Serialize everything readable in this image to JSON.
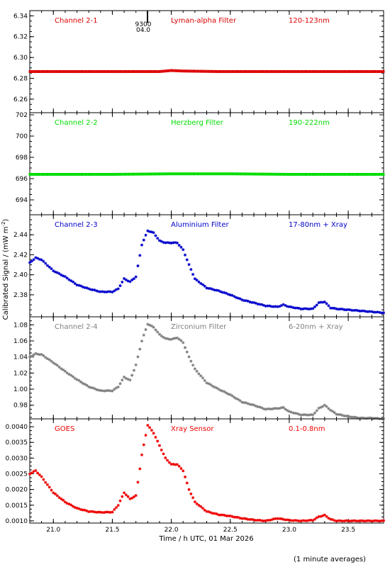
{
  "figure": {
    "ylabel": "Calibrated Signal / (mW m",
    "ylabel_sup": "-2",
    "ylabel_tail": ")",
    "xlabel": "Time / h UTC, 01 Mar 2026",
    "footnote": "(1 minute averages)",
    "marker_top": "9300",
    "marker_bottom": "04.0"
  },
  "chart_data": [
    {
      "type": "scatter",
      "channel": "Channel 2-1",
      "filter": "Lyman-alpha Filter",
      "band": "120-123nm",
      "color": "#dd0000",
      "xlim": [
        20.8,
        23.8
      ],
      "ylim": [
        6.247,
        6.345
      ],
      "yticks": [
        6.26,
        6.28,
        6.3,
        6.32,
        6.34
      ],
      "yticklabels": [
        "6.26",
        "6.28",
        "6.30",
        "6.32",
        "6.34"
      ],
      "series": [
        {
          "x": [
            20.8,
            21.5,
            21.9,
            22.0,
            22.1,
            22.4,
            23.0,
            23.8
          ],
          "y": [
            6.2865,
            6.2865,
            6.2865,
            6.2875,
            6.287,
            6.2865,
            6.2865,
            6.2865
          ]
        }
      ]
    },
    {
      "type": "scatter",
      "channel": "Channel 2-2",
      "filter": "Herzberg Filter",
      "band": "190-222nm",
      "color": "#00dd00",
      "xlim": [
        20.8,
        23.8
      ],
      "ylim": [
        692.6,
        702.2
      ],
      "yticks": [
        694,
        696,
        698,
        700,
        702
      ],
      "yticklabels": [
        "694",
        "696",
        "698",
        "700",
        "702"
      ],
      "series": [
        {
          "x": [
            20.8,
            21.5,
            22.0,
            22.5,
            23.0,
            23.8
          ],
          "y": [
            696.4,
            696.4,
            696.45,
            696.45,
            696.4,
            696.4
          ]
        }
      ]
    },
    {
      "type": "scatter",
      "channel": "Channel 2-3",
      "filter": "Aluminium Filter",
      "band": "17-80nm + Xray",
      "color": "#0000cc",
      "xlim": [
        20.8,
        23.8
      ],
      "ylim": [
        2.358,
        2.46
      ],
      "yticks": [
        2.38,
        2.4,
        2.42,
        2.44
      ],
      "yticklabels": [
        "2.38",
        "2.40",
        "2.42",
        "2.44"
      ],
      "series": [
        {
          "x": [
            20.8,
            20.85,
            20.9,
            21.0,
            21.1,
            21.2,
            21.3,
            21.4,
            21.5,
            21.55,
            21.6,
            21.65,
            21.7,
            21.75,
            21.8,
            21.85,
            21.9,
            21.95,
            22.05,
            22.1,
            22.15,
            22.2,
            22.3,
            22.4,
            22.5,
            22.6,
            22.7,
            22.8,
            22.9,
            22.95,
            23.0,
            23.1,
            23.2,
            23.25,
            23.3,
            23.35,
            23.4,
            23.5,
            23.6,
            23.7,
            23.8
          ],
          "y": [
            2.412,
            2.417,
            2.415,
            2.404,
            2.398,
            2.39,
            2.386,
            2.383,
            2.383,
            2.386,
            2.396,
            2.393,
            2.398,
            2.43,
            2.444,
            2.442,
            2.434,
            2.432,
            2.432,
            2.425,
            2.41,
            2.396,
            2.387,
            2.384,
            2.38,
            2.375,
            2.372,
            2.369,
            2.368,
            2.37,
            2.368,
            2.366,
            2.366,
            2.372,
            2.373,
            2.367,
            2.366,
            2.365,
            2.364,
            2.363,
            2.362
          ]
        }
      ]
    },
    {
      "type": "scatter",
      "channel": "Channel 2-4",
      "filter": "Zirconium Filter",
      "band": "6-20nm + Xray",
      "color": "#808080",
      "xlim": [
        20.8,
        23.8
      ],
      "ylim": [
        0.963,
        1.09
      ],
      "yticks": [
        0.98,
        1.0,
        1.02,
        1.04,
        1.06,
        1.08
      ],
      "yticklabels": [
        "0.98",
        "1.00",
        "1.02",
        "1.04",
        "1.06",
        "1.08"
      ],
      "series": [
        {
          "x": [
            20.8,
            20.85,
            20.9,
            21.0,
            21.1,
            21.2,
            21.3,
            21.4,
            21.5,
            21.55,
            21.6,
            21.65,
            21.7,
            21.75,
            21.8,
            21.85,
            21.9,
            21.95,
            22.0,
            22.05,
            22.1,
            22.15,
            22.2,
            22.3,
            22.4,
            22.5,
            22.6,
            22.7,
            22.8,
            22.9,
            22.95,
            23.0,
            23.1,
            23.2,
            23.25,
            23.3,
            23.35,
            23.4,
            23.5,
            23.6,
            23.7,
            23.8
          ],
          "y": [
            1.04,
            1.044,
            1.043,
            1.033,
            1.022,
            1.012,
            1.003,
            0.998,
            0.998,
            1.003,
            1.015,
            1.011,
            1.03,
            1.06,
            1.081,
            1.077,
            1.068,
            1.063,
            1.062,
            1.064,
            1.058,
            1.04,
            1.025,
            1.008,
            1.0,
            0.993,
            0.984,
            0.98,
            0.975,
            0.976,
            0.977,
            0.972,
            0.968,
            0.968,
            0.976,
            0.98,
            0.974,
            0.969,
            0.966,
            0.964,
            0.964,
            0.963
          ]
        }
      ]
    },
    {
      "type": "scatter",
      "channel": "GOES",
      "filter": "Xray Sensor",
      "band": "0.1-0.8nm",
      "color": "#ee0000",
      "xlim": [
        20.8,
        23.8
      ],
      "ylim": [
        0.00093,
        0.00425
      ],
      "yticks": [
        0.001,
        0.0015,
        0.002,
        0.0025,
        0.003,
        0.0035,
        0.004
      ],
      "yticklabels": [
        "0.0010",
        "0.0015",
        "0.0020",
        "0.0025",
        "0.0030",
        "0.0035",
        "0.0040"
      ],
      "series": [
        {
          "x": [
            20.8,
            20.85,
            20.9,
            21.0,
            21.1,
            21.2,
            21.3,
            21.4,
            21.5,
            21.55,
            21.6,
            21.65,
            21.7,
            21.75,
            21.8,
            21.85,
            21.9,
            21.95,
            22.0,
            22.05,
            22.1,
            22.15,
            22.2,
            22.3,
            22.4,
            22.5,
            22.6,
            22.7,
            22.8,
            22.9,
            22.95,
            23.0,
            23.1,
            23.2,
            23.25,
            23.3,
            23.35,
            23.4,
            23.5,
            23.6,
            23.7,
            23.8
          ],
          "y": [
            0.0025,
            0.0026,
            0.0024,
            0.0019,
            0.0016,
            0.0014,
            0.0013,
            0.00127,
            0.00128,
            0.0015,
            0.0019,
            0.0017,
            0.0018,
            0.0031,
            0.00405,
            0.0038,
            0.0034,
            0.003,
            0.0028,
            0.0028,
            0.0026,
            0.002,
            0.0016,
            0.0013,
            0.0012,
            0.00115,
            0.00108,
            0.00103,
            0.001,
            0.00108,
            0.00105,
            0.00102,
            0.001,
            0.00102,
            0.00113,
            0.00118,
            0.00105,
            0.001,
            0.001,
            0.001,
            0.001,
            0.001
          ]
        }
      ]
    }
  ],
  "xaxis": {
    "ticks": [
      21.0,
      21.5,
      22.0,
      22.5,
      23.0,
      23.5
    ],
    "ticklabels": [
      "21.0",
      "21.5",
      "22.0",
      "22.5",
      "23.0",
      "23.5"
    ]
  }
}
